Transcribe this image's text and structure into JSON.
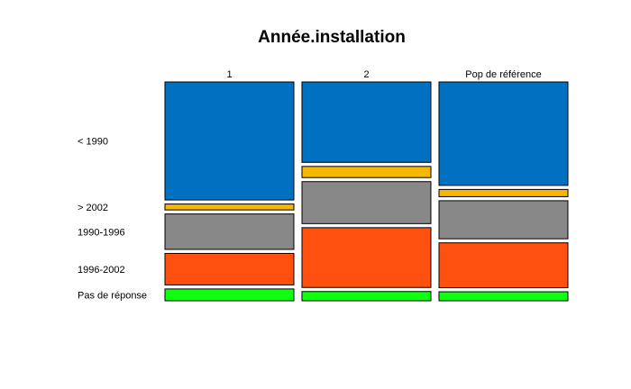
{
  "chart_data": {
    "type": "mosaic",
    "title": "Année.installation",
    "columns": [
      "1",
      "2",
      "Pop de référence"
    ],
    "categories": [
      "< 1990",
      "> 2002",
      "1990-1996",
      "1996-2002",
      "Pas de réponse"
    ],
    "colors": [
      "#0070c0",
      "#f5b800",
      "#888888",
      "#ff5010",
      "#10ff10"
    ],
    "proportions": [
      [
        0.6,
        0.03,
        0.18,
        0.16,
        0.06
      ],
      [
        0.41,
        0.057,
        0.214,
        0.305,
        0.047
      ],
      [
        0.53,
        0.037,
        0.195,
        0.23,
        0.046
      ]
    ]
  }
}
